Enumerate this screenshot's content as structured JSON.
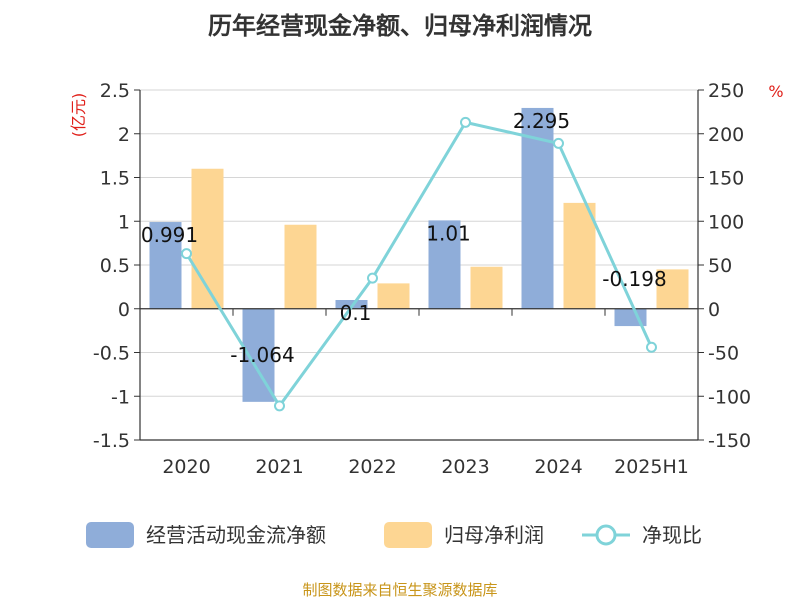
{
  "chart_data": {
    "type": "bar",
    "title": "历年经营现金净额、归母净利润情况",
    "categories": [
      "2020",
      "2021",
      "2022",
      "2023",
      "2024",
      "2025H1"
    ],
    "left_axis": {
      "unit": "(亿元)",
      "ylim": [
        -1.5,
        2.5
      ],
      "ticks": [
        "2.5",
        "2",
        "1.5",
        "1",
        "0.5",
        "0",
        "-0.5",
        "-1",
        "-1.5"
      ]
    },
    "right_axis": {
      "unit": "%",
      "ylim": [
        -150,
        250
      ],
      "ticks": [
        "250",
        "200",
        "150",
        "100",
        "50",
        "0",
        "-50",
        "-100",
        "-150"
      ]
    },
    "series": [
      {
        "name": "经营活动现金流净额",
        "kind": "bar",
        "axis": "left",
        "color": "#8fadd9",
        "values": [
          0.991,
          -1.064,
          0.1,
          1.01,
          2.295,
          -0.198
        ],
        "labels": [
          "0.991",
          "-1.064",
          "0.1",
          "1.01",
          "2.295",
          "-0.198"
        ]
      },
      {
        "name": "归母净利润",
        "kind": "bar",
        "axis": "left",
        "color": "#fdd693",
        "values": [
          1.6,
          0.96,
          0.29,
          0.48,
          1.21,
          0.45
        ]
      },
      {
        "name": "净现比",
        "kind": "line",
        "axis": "right",
        "color": "#7fd3d9",
        "values": [
          63,
          -111,
          35,
          213,
          189,
          -44
        ]
      }
    ],
    "grid": true,
    "legend_position": "bottom"
  },
  "footer": {
    "source": "制图数据来自恒生聚源数据库"
  }
}
